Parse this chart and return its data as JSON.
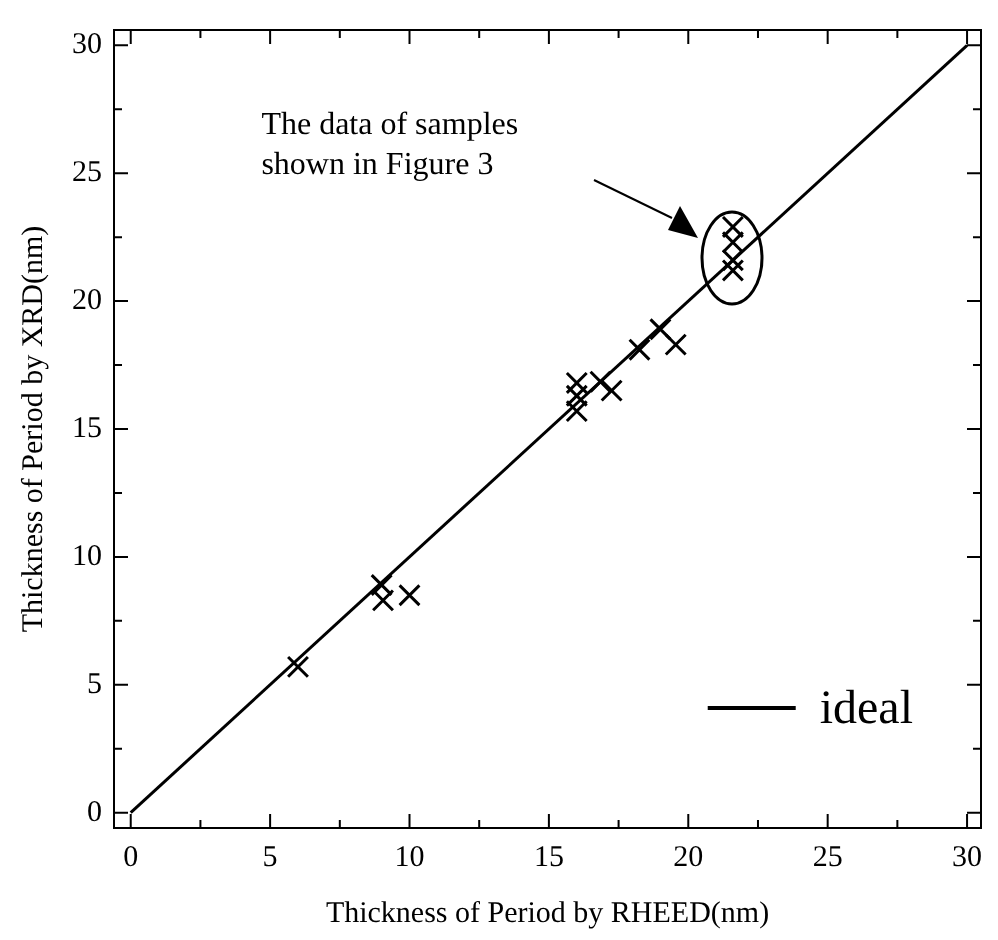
{
  "chart_data": {
    "type": "scatter",
    "xlabel": "Thickness of Period by RHEED(nm)",
    "ylabel": "Thickness of Period by XRD(nm)",
    "xlim": [
      -0.6,
      30.5
    ],
    "ylim": [
      -0.6,
      30.6
    ],
    "xticks": [
      0,
      {
        "value": 2.5,
        "label": null
      },
      5,
      {
        "value": 7.5,
        "label": null
      },
      10,
      {
        "value": 12.5,
        "label": null
      },
      15,
      {
        "value": 17.5,
        "label": null
      },
      20,
      {
        "value": 22.5,
        "label": null
      },
      25,
      {
        "value": 27.5,
        "label": null
      },
      30
    ],
    "yticks": [
      0,
      {
        "value": 2.5,
        "label": null
      },
      5,
      {
        "value": 7.5,
        "label": null
      },
      10,
      {
        "value": 12.5,
        "label": null
      },
      15,
      {
        "value": 17.5,
        "label": null
      },
      20,
      {
        "value": 22.5,
        "label": null
      },
      25,
      {
        "value": 27.5,
        "label": null
      },
      30
    ],
    "grid": false,
    "legend": "bottom right",
    "marker": "cross",
    "annotations": [
      "The data of samples\nshown in Figure 3"
    ],
    "series": [
      {
        "color": "#000000",
        "x": [
          6,
          9,
          9.05,
          10,
          16,
          16,
          16,
          16.85,
          17.25,
          18.25,
          19,
          19.55,
          21.6,
          21.6,
          21.6,
          21.6
        ],
        "values": [
          5.7,
          8.9,
          8.3,
          8.5,
          16.8,
          16.3,
          15.7,
          16.85,
          16.5,
          18.1,
          18.9,
          18.3,
          22.9,
          22.3,
          21.6,
          21.2
        ]
      },
      {
        "type": "line",
        "name": "ideal",
        "color": "#000000",
        "marker": "none",
        "line_style": "solid",
        "x": [
          0,
          30
        ],
        "values": [
          0,
          30
        ]
      }
    ]
  }
}
